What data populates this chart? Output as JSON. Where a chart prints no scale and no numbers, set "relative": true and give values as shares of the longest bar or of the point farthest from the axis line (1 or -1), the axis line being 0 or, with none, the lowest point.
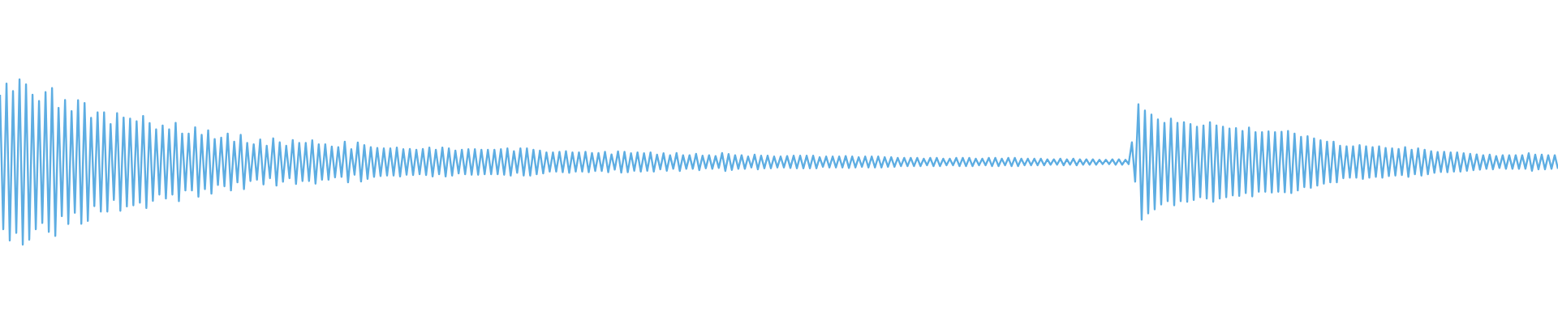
{
  "chart_data": {
    "type": "line",
    "relative": true,
    "color": "#5dade2",
    "categories": [
      null,
      null,
      null,
      null,
      null,
      null,
      null,
      null,
      null,
      null,
      null,
      null,
      null,
      null,
      null,
      null,
      null,
      null,
      null,
      null,
      null,
      null,
      null,
      null,
      null,
      null,
      null,
      null,
      null,
      null,
      null,
      null,
      null,
      null,
      null,
      null,
      null,
      null,
      null,
      null,
      null,
      null,
      null,
      null,
      null,
      null,
      null,
      null,
      null,
      null,
      null,
      null,
      null,
      null,
      null,
      null,
      null,
      null,
      null,
      null,
      null,
      null,
      null,
      null,
      null,
      null,
      null,
      null,
      null,
      null,
      null,
      null,
      null,
      null,
      null,
      null,
      null,
      null,
      null,
      null,
      null,
      null,
      null,
      null,
      null,
      null,
      null,
      null,
      null,
      null,
      null,
      null,
      null,
      null,
      null,
      null,
      null,
      null,
      null,
      null,
      null,
      null,
      null,
      null,
      null,
      null,
      null,
      null,
      null,
      null,
      null,
      null,
      null,
      null,
      null,
      null,
      null,
      null,
      null,
      null,
      null,
      null,
      null,
      null,
      null,
      null,
      null,
      null,
      null,
      null,
      null,
      null,
      null,
      null,
      null,
      null,
      null,
      null,
      null,
      null,
      null,
      null,
      null,
      null,
      null,
      null,
      null,
      null,
      null,
      null,
      null,
      null,
      null,
      null,
      null,
      null,
      null,
      null,
      null,
      null,
      null,
      null,
      null,
      null,
      null,
      null,
      null,
      null,
      null,
      null,
      null,
      null,
      null,
      null,
      null,
      null,
      null,
      null,
      null,
      null,
      null,
      null,
      null,
      null,
      null,
      null,
      null,
      null,
      null,
      null,
      null,
      null,
      null,
      null,
      null,
      null,
      null,
      null,
      null,
      null,
      null,
      null,
      null,
      null,
      null,
      null,
      null,
      null,
      null,
      null,
      null,
      null,
      null,
      null,
      null,
      null,
      null,
      null,
      null,
      null,
      null,
      null,
      null,
      null,
      null,
      null,
      null,
      null,
      null,
      null,
      null,
      null,
      null,
      null,
      null,
      null,
      null,
      null,
      null,
      null,
      null,
      null,
      null,
      null,
      null,
      null,
      null,
      null,
      null,
      null,
      null,
      null,
      null,
      null,
      null,
      null,
      null,
      null,
      null,
      null,
      null,
      null,
      null,
      null,
      null,
      null,
      null,
      null,
      null,
      null,
      null,
      null,
      null,
      null,
      null,
      null,
      null,
      null,
      null,
      null,
      null,
      null,
      null,
      null,
      null,
      null,
      null,
      null,
      null,
      null,
      null,
      null,
      null,
      null,
      null,
      null,
      null,
      null,
      null,
      null,
      null,
      null,
      null,
      null,
      null,
      null,
      null,
      null,
      null,
      null,
      null,
      null,
      null,
      null,
      null,
      null,
      null,
      null,
      null,
      null,
      null,
      null,
      null,
      null,
      null,
      null,
      null,
      null,
      null,
      null,
      null,
      null,
      null,
      null,
      null,
      null,
      null,
      null,
      null,
      null,
      null,
      null,
      null,
      null,
      null,
      null,
      null,
      null,
      null,
      null,
      null,
      null,
      null,
      null,
      null,
      null,
      null,
      null,
      null,
      null,
      null,
      null,
      null,
      null,
      null,
      null,
      null,
      null,
      null,
      null,
      null,
      null,
      null,
      null,
      null,
      null,
      null,
      null,
      null,
      null,
      null,
      null,
      null,
      null,
      null,
      null,
      null,
      null,
      null,
      null,
      null,
      null,
      null,
      null,
      null,
      null,
      null,
      null,
      null,
      null,
      null,
      null,
      null,
      null,
      null,
      null,
      null,
      null,
      null,
      null,
      null,
      null,
      null,
      null,
      null,
      null,
      null,
      null,
      null,
      null,
      null,
      null,
      null,
      null,
      null,
      null,
      null,
      null,
      null,
      null,
      null,
      null,
      null,
      null,
      null,
      null,
      null,
      null,
      null,
      null,
      null,
      null,
      null,
      null,
      null,
      null,
      null,
      null,
      null,
      null,
      null,
      null,
      null,
      null,
      null,
      null,
      null,
      null,
      null,
      null,
      null,
      null,
      null,
      null,
      null,
      null,
      null,
      null,
      null,
      null,
      null,
      null,
      null,
      null,
      null,
      null,
      null,
      null,
      null,
      null
    ],
    "values": [
      0.907,
      0.093,
      0.975,
      0.025,
      0.929,
      0.071,
      1,
      0,
      0.97,
      0.03,
      0.907,
      0.093,
      0.869,
      0.131,
      0.923,
      0.077,
      0.947,
      0.053,
      0.828,
      0.172,
      0.875,
      0.125,
      0.808,
      0.192,
      0.874,
      0.126,
      0.857,
      0.143,
      0.767,
      0.233,
      0.8,
      0.2,
      0.8,
      0.2,
      0.73,
      0.27,
      0.795,
      0.205,
      0.769,
      0.231,
      0.762,
      0.238,
      0.746,
      0.254,
      0.779,
      0.221,
      0.735,
      0.265,
      0.697,
      0.303,
      0.721,
      0.279,
      0.697,
      0.303,
      0.737,
      0.263,
      0.672,
      0.328,
      0.672,
      0.328,
      0.71,
      0.29,
      0.664,
      0.336,
      0.692,
      0.308,
      0.639,
      0.361,
      0.647,
      0.353,
      0.672,
      0.328,
      0.623,
      0.377,
      0.664,
      0.336,
      0.615,
      0.385,
      0.607,
      0.393,
      0.636,
      0.364,
      0.598,
      0.402,
      0.643,
      0.357,
      0.619,
      0.381,
      0.598,
      0.402,
      0.633,
      0.367,
      0.615,
      0.385,
      0.615,
      0.385,
      0.631,
      0.369,
      0.607,
      0.393,
      0.607,
      0.393,
      0.593,
      0.407,
      0.59,
      0.41,
      0.623,
      0.377,
      0.577,
      0.423,
      0.618,
      0.382,
      0.602,
      0.398,
      0.59,
      0.41,
      0.585,
      0.415,
      0.582,
      0.418,
      0.582,
      0.418,
      0.587,
      0.413,
      0.577,
      0.423,
      0.579,
      0.421,
      0.574,
      0.426,
      0.579,
      0.421,
      0.587,
      0.413,
      0.574,
      0.426,
      0.587,
      0.413,
      0.582,
      0.418,
      0.569,
      0.431,
      0.574,
      0.426,
      0.577,
      0.423,
      0.577,
      0.423,
      0.574,
      0.426,
      0.574,
      0.426,
      0.574,
      0.426,
      0.577,
      0.423,
      0.582,
      0.418,
      0.565,
      0.435,
      0.582,
      0.418,
      0.582,
      0.418,
      0.574,
      0.426,
      0.569,
      0.431,
      0.558,
      0.442,
      0.558,
      0.442,
      0.562,
      0.438,
      0.565,
      0.435,
      0.558,
      0.442,
      0.558,
      0.442,
      0.562,
      0.438,
      0.554,
      0.446,
      0.554,
      0.446,
      0.562,
      0.438,
      0.546,
      0.454,
      0.564,
      0.436,
      0.562,
      0.438,
      0.553,
      0.447,
      0.558,
      0.442,
      0.553,
      0.447,
      0.558,
      0.442,
      0.544,
      0.456,
      0.553,
      0.447,
      0.541,
      0.459,
      0.554,
      0.446,
      0.541,
      0.459,
      0.541,
      0.459,
      0.549,
      0.451,
      0.538,
      0.462,
      0.541,
      0.459,
      0.536,
      0.464,
      0.554,
      0.446,
      0.548,
      0.452,
      0.541,
      0.459,
      0.541,
      0.459,
      0.533,
      0.467,
      0.544,
      0.456,
      0.538,
      0.462,
      0.538,
      0.462,
      0.533,
      0.467,
      0.533,
      0.467,
      0.536,
      0.464,
      0.538,
      0.462,
      0.538,
      0.462,
      0.538,
      0.462,
      0.538,
      0.462,
      0.529,
      0.471,
      0.533,
      0.467,
      0.533,
      0.467,
      0.533,
      0.467,
      0.536,
      0.464,
      0.533,
      0.467,
      0.529,
      0.471,
      0.533,
      0.467,
      0.533,
      0.467,
      0.533,
      0.467,
      0.529,
      0.471,
      0.529,
      0.471,
      0.525,
      0.475,
      0.525,
      0.475,
      0.525,
      0.475,
      0.525,
      0.475,
      0.52,
      0.48,
      0.525,
      0.475,
      0.525,
      0.475,
      0.52,
      0.48,
      0.52,
      0.48,
      0.525,
      0.475,
      0.525,
      0.475,
      0.525,
      0.475,
      0.52,
      0.48,
      0.52,
      0.48,
      0.525,
      0.475,
      0.525,
      0.475,
      0.52,
      0.48,
      0.525,
      0.475,
      0.525,
      0.475,
      0.52,
      0.48,
      0.52,
      0.48,
      0.52,
      0.48,
      0.52,
      0.48,
      0.516,
      0.484,
      0.516,
      0.484,
      0.52,
      0.48,
      0.516,
      0.484,
      0.52,
      0.48,
      0.516,
      0.484,
      0.516,
      0.484,
      0.516,
      0.484,
      0.513,
      0.487,
      0.513,
      0.487,
      0.516,
      0.484,
      0.516,
      0.484,
      0.513,
      0.487,
      0.619,
      0.381,
      0.849,
      0.151,
      0.811,
      0.189,
      0.787,
      0.213,
      0.757,
      0.243,
      0.737,
      0.263,
      0.762,
      0.238,
      0.737,
      0.263,
      0.741,
      0.259,
      0.73,
      0.27,
      0.713,
      0.287,
      0.721,
      0.279,
      0.741,
      0.259,
      0.721,
      0.279,
      0.713,
      0.287,
      0.702,
      0.298,
      0.705,
      0.295,
      0.688,
      0.312,
      0.708,
      0.292,
      0.68,
      0.32,
      0.68,
      0.32,
      0.685,
      0.315,
      0.68,
      0.32,
      0.683,
      0.317,
      0.688,
      0.312,
      0.672,
      0.328,
      0.652,
      0.348,
      0.656,
      0.344,
      0.643,
      0.357,
      0.631,
      0.369,
      0.623,
      0.377,
      0.623,
      0.377,
      0.598,
      0.402,
      0.595,
      0.405,
      0.595,
      0.405,
      0.602,
      0.398,
      0.595,
      0.405,
      0.59,
      0.41,
      0.595,
      0.405,
      0.585,
      0.415,
      0.582,
      0.418,
      0.579,
      0.421,
      0.59,
      0.41,
      0.574,
      0.426,
      0.582,
      0.418,
      0.574,
      0.426,
      0.565,
      0.435,
      0.56,
      0.44,
      0.562,
      0.438,
      0.558,
      0.442,
      0.558,
      0.442,
      0.553,
      0.447,
      0.549,
      0.451,
      0.546,
      0.454,
      0.541,
      0.459,
      0.544,
      0.456,
      0.536,
      0.464,
      0.541,
      0.459,
      0.541,
      0.459,
      0.541,
      0.459,
      0.541,
      0.459,
      0.553,
      0.447,
      0.544,
      0.456,
      0.544,
      0.456,
      0.541,
      0.459,
      0.541,
      0.459
    ]
  }
}
